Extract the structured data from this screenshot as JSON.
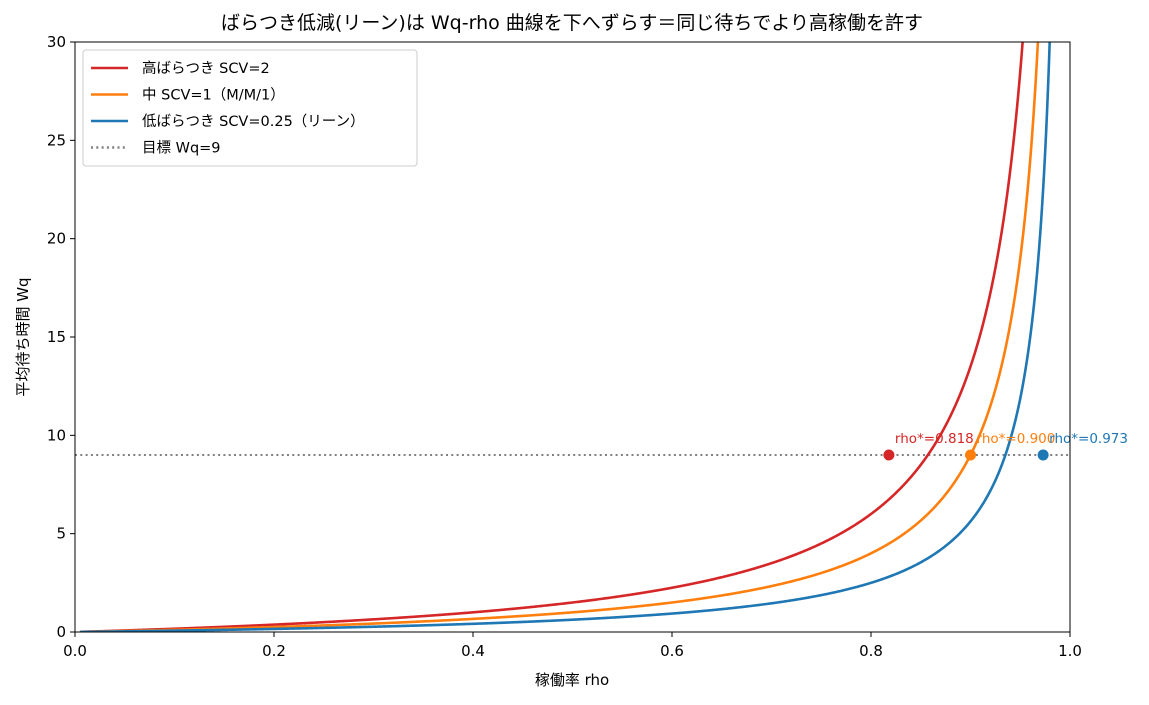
{
  "chart_data": {
    "type": "line",
    "title": "ばらつき低減(リーン)は Wq-rho 曲線を下へずらす＝同じ待ちでより高稼働を許す",
    "xlabel": "稼働率 rho",
    "ylabel": "平均待ち時間 Wq",
    "xlim": [
      0.0,
      1.0
    ],
    "ylim": [
      0,
      30
    ],
    "xticks": [
      0.0,
      0.2,
      0.4,
      0.6,
      0.8,
      1.0
    ],
    "xtick_labels": [
      "0.0",
      "0.2",
      "0.4",
      "0.6",
      "0.8",
      "1.0"
    ],
    "yticks": [
      0,
      5,
      10,
      15,
      20,
      25,
      30
    ],
    "ytick_labels": [
      "0",
      "5",
      "10",
      "15",
      "20",
      "25",
      "30"
    ],
    "grid": false,
    "legend_position": "top-left",
    "series": [
      {
        "name": "高ばらつき SCV=2",
        "color": "#d62728",
        "scv": 2,
        "x": [
          0.01,
          0.1,
          0.2,
          0.3,
          0.4,
          0.5,
          0.6,
          0.7,
          0.8,
          0.818,
          0.85,
          0.9,
          0.93,
          0.94
        ],
        "y": [
          0.02,
          0.22,
          0.5,
          0.86,
          1.33,
          2.0,
          3.0,
          4.67,
          8.0,
          9.0,
          11.33,
          18.0,
          26.57,
          31.33
        ]
      },
      {
        "name": "中 SCV=1（M/M/1）",
        "color": "#ff7f0e",
        "scv": 1,
        "x": [
          0.01,
          0.1,
          0.2,
          0.3,
          0.4,
          0.5,
          0.6,
          0.7,
          0.8,
          0.85,
          0.9,
          0.95,
          0.96,
          0.97
        ],
        "y": [
          0.01,
          0.11,
          0.25,
          0.43,
          0.67,
          1.0,
          1.5,
          2.33,
          4.0,
          5.67,
          9.0,
          19.0,
          24.0,
          32.33
        ]
      },
      {
        "name": "低ばらつき SCV=0.25（リーン）",
        "color": "#1f77b4",
        "scv": 0.25,
        "x": [
          0.01,
          0.1,
          0.2,
          0.3,
          0.4,
          0.5,
          0.6,
          0.7,
          0.8,
          0.85,
          0.9,
          0.95,
          0.97,
          0.973
        ],
        "y": [
          0.0,
          0.03,
          0.06,
          0.11,
          0.17,
          0.25,
          0.38,
          0.58,
          1.0,
          1.42,
          2.25,
          4.75,
          8.08,
          9.0
        ]
      }
    ],
    "reference_line": {
      "name": "目標 Wq=9",
      "y": 9,
      "color": "#808080",
      "style": "dotted"
    },
    "annotations": [
      {
        "text": "rho*=0.818",
        "x": 0.818,
        "y": 9,
        "color": "#d62728"
      },
      {
        "text": "rho*=0.900",
        "x": 0.9,
        "y": 9,
        "color": "#ff7f0e"
      },
      {
        "text": "rho*=0.973",
        "x": 0.973,
        "y": 9,
        "color": "#1f77b4"
      }
    ]
  }
}
